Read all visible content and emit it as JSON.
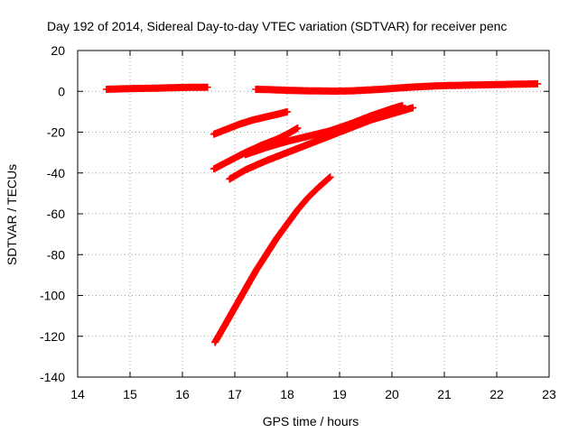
{
  "chart_data": {
    "type": "scatter",
    "title": "Day 192 of 2014, Sidereal Day-to-day VTEC variation (SDTVAR) for receiver penc",
    "xlabel": "GPS time / hours",
    "ylabel": "SDTVAR / TECUs",
    "xlim": [
      14,
      23
    ],
    "ylim": [
      -140,
      20
    ],
    "xticks": [
      "14",
      "15",
      "16",
      "17",
      "18",
      "19",
      "20",
      "21",
      "22",
      "23"
    ],
    "yticks": [
      "20",
      "0",
      "-20",
      "-40",
      "-60",
      "-80",
      "-100",
      "-120",
      "-140"
    ],
    "grid": true,
    "marker": "+",
    "series_color": "#ff0000",
    "series": [
      {
        "x": [
          14.55,
          14.8,
          15.1,
          15.4,
          15.7,
          16.0,
          16.3,
          16.48
        ],
        "y": [
          1.0,
          1.2,
          1.4,
          1.5,
          1.7,
          1.9,
          2.0,
          2.0
        ]
      },
      {
        "x": [
          17.4,
          17.7,
          18.0,
          18.3,
          18.6,
          18.9,
          19.2,
          19.5,
          19.8,
          20.1,
          20.4,
          20.7,
          21.0,
          21.4,
          21.8,
          22.2,
          22.6,
          22.78
        ],
        "y": [
          1.0,
          0.8,
          0.5,
          0.3,
          0.2,
          0.1,
          0.2,
          0.6,
          1.0,
          1.6,
          2.1,
          2.5,
          2.8,
          3.0,
          3.2,
          3.4,
          3.6,
          3.7
        ]
      },
      {
        "x": [
          16.6,
          16.85,
          17.1,
          17.35,
          17.6,
          17.85,
          18.0
        ],
        "y": [
          -21,
          -18.5,
          -16,
          -14,
          -12.5,
          -11,
          -10
        ]
      },
      {
        "x": [
          16.6,
          16.9,
          17.2,
          17.5,
          17.8,
          18.0,
          18.2
        ],
        "y": [
          -38,
          -34,
          -30,
          -26.5,
          -23.5,
          -21,
          -18
        ]
      },
      {
        "x": [
          16.9,
          17.2,
          17.6,
          18.0,
          18.4,
          18.8,
          19.2,
          19.6,
          20.0,
          20.4
        ],
        "y": [
          -43,
          -38.5,
          -34,
          -30,
          -26,
          -22,
          -18,
          -14,
          -11,
          -8
        ]
      },
      {
        "x": [
          17.2,
          17.6,
          18.0,
          18.4,
          18.8,
          19.2,
          19.6,
          20.0,
          20.2
        ],
        "y": [
          -31,
          -27.5,
          -24.5,
          -22,
          -19.5,
          -16,
          -12,
          -8.5,
          -7
        ]
      },
      {
        "x": [
          16.62,
          16.8,
          17.0,
          17.2,
          17.4,
          17.6,
          17.8,
          18.0,
          18.2,
          18.4,
          18.6,
          18.82
        ],
        "y": [
          -123,
          -115,
          -106,
          -97,
          -88,
          -80,
          -72,
          -65,
          -58,
          -52,
          -47,
          -42
        ]
      }
    ]
  }
}
